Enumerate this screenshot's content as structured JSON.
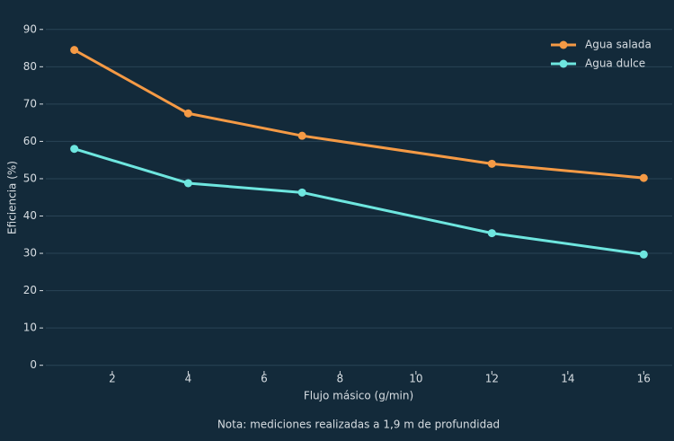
{
  "chart_data": {
    "type": "line",
    "x": [
      1,
      4,
      7,
      12,
      16
    ],
    "series": [
      {
        "name": "Agua salada",
        "color": "#f59a45",
        "values": [
          84.5,
          67.5,
          61.5,
          54.0,
          50.2
        ]
      },
      {
        "name": "Agua dulce",
        "color": "#6ee6df",
        "values": [
          58.0,
          48.8,
          46.3,
          35.4,
          29.7
        ]
      }
    ],
    "xlabel": "Flujo másico (g/min)",
    "ylabel": "Eficiencia (%)",
    "annotation": "Nota: mediciones realizadas a 1,9 m de profundidad",
    "xlim": [
      0.25,
      16.75
    ],
    "xticks": [
      2,
      4,
      6,
      8,
      10,
      12,
      14,
      16
    ],
    "ylim": [
      -2,
      95
    ],
    "yticks": [
      0,
      10,
      20,
      30,
      40,
      50,
      60,
      70,
      80,
      90
    ],
    "grid": true,
    "legend": "upper right"
  }
}
